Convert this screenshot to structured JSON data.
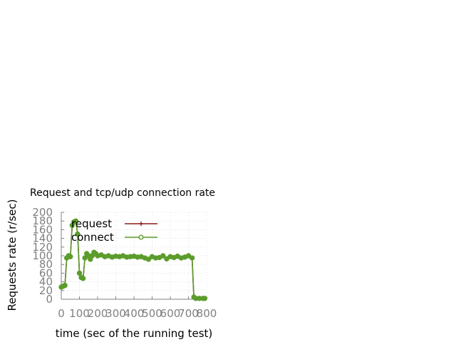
{
  "chart_data": {
    "type": "line",
    "title": "Request and tcp/udp connection rate",
    "xlabel": "time (sec of the running test)",
    "ylabel": "Requests rate (r/sec)",
    "xlim": [
      0,
      800
    ],
    "ylim": [
      0,
      200
    ],
    "xticks": [
      "0",
      "100",
      "200",
      "300",
      "400",
      "500",
      "600",
      "700",
      "800"
    ],
    "yticks": [
      "0",
      "20",
      "40",
      "60",
      "80",
      "100",
      "120",
      "140",
      "160",
      "180",
      "200"
    ],
    "grid": true,
    "legend_position": "top-left",
    "series": [
      {
        "name": "request",
        "color": "#8b1a1a",
        "marker": "plus",
        "x": [
          0,
          10,
          20,
          30,
          40,
          50,
          60,
          70,
          80,
          90,
          100,
          110,
          120,
          130,
          140,
          150,
          160,
          170,
          180,
          190,
          200,
          220,
          240,
          260,
          280,
          300,
          320,
          340,
          360,
          380,
          400,
          420,
          440,
          460,
          480,
          500,
          520,
          540,
          560,
          580,
          600,
          620,
          640,
          660,
          680,
          700,
          720,
          730,
          740,
          760,
          780,
          790
        ],
        "y": [
          28,
          30,
          32,
          95,
          100,
          98,
          170,
          178,
          180,
          150,
          60,
          50,
          48,
          95,
          105,
          100,
          92,
          100,
          108,
          105,
          100,
          102,
          98,
          100,
          97,
          99,
          98,
          100,
          97,
          98,
          99,
          97,
          98,
          95,
          92,
          98,
          95,
          96,
          100,
          93,
          98,
          96,
          99,
          95,
          97,
          100,
          95,
          5,
          2,
          2,
          2,
          2
        ]
      },
      {
        "name": "connect",
        "color": "#5c9c2c",
        "marker": "circle",
        "x": [
          0,
          10,
          20,
          30,
          40,
          50,
          60,
          70,
          80,
          90,
          100,
          110,
          120,
          130,
          140,
          150,
          160,
          170,
          180,
          190,
          200,
          220,
          240,
          260,
          280,
          300,
          320,
          340,
          360,
          380,
          400,
          420,
          440,
          460,
          480,
          500,
          520,
          540,
          560,
          580,
          600,
          620,
          640,
          660,
          680,
          700,
          720,
          730,
          740,
          760,
          780,
          790
        ],
        "y": [
          28,
          30,
          32,
          95,
          100,
          98,
          170,
          178,
          180,
          150,
          60,
          50,
          48,
          95,
          105,
          100,
          92,
          100,
          108,
          105,
          100,
          102,
          98,
          100,
          97,
          99,
          98,
          100,
          97,
          98,
          99,
          97,
          98,
          95,
          92,
          98,
          95,
          96,
          100,
          93,
          98,
          96,
          99,
          95,
          97,
          100,
          95,
          5,
          2,
          2,
          2,
          2
        ]
      }
    ]
  }
}
